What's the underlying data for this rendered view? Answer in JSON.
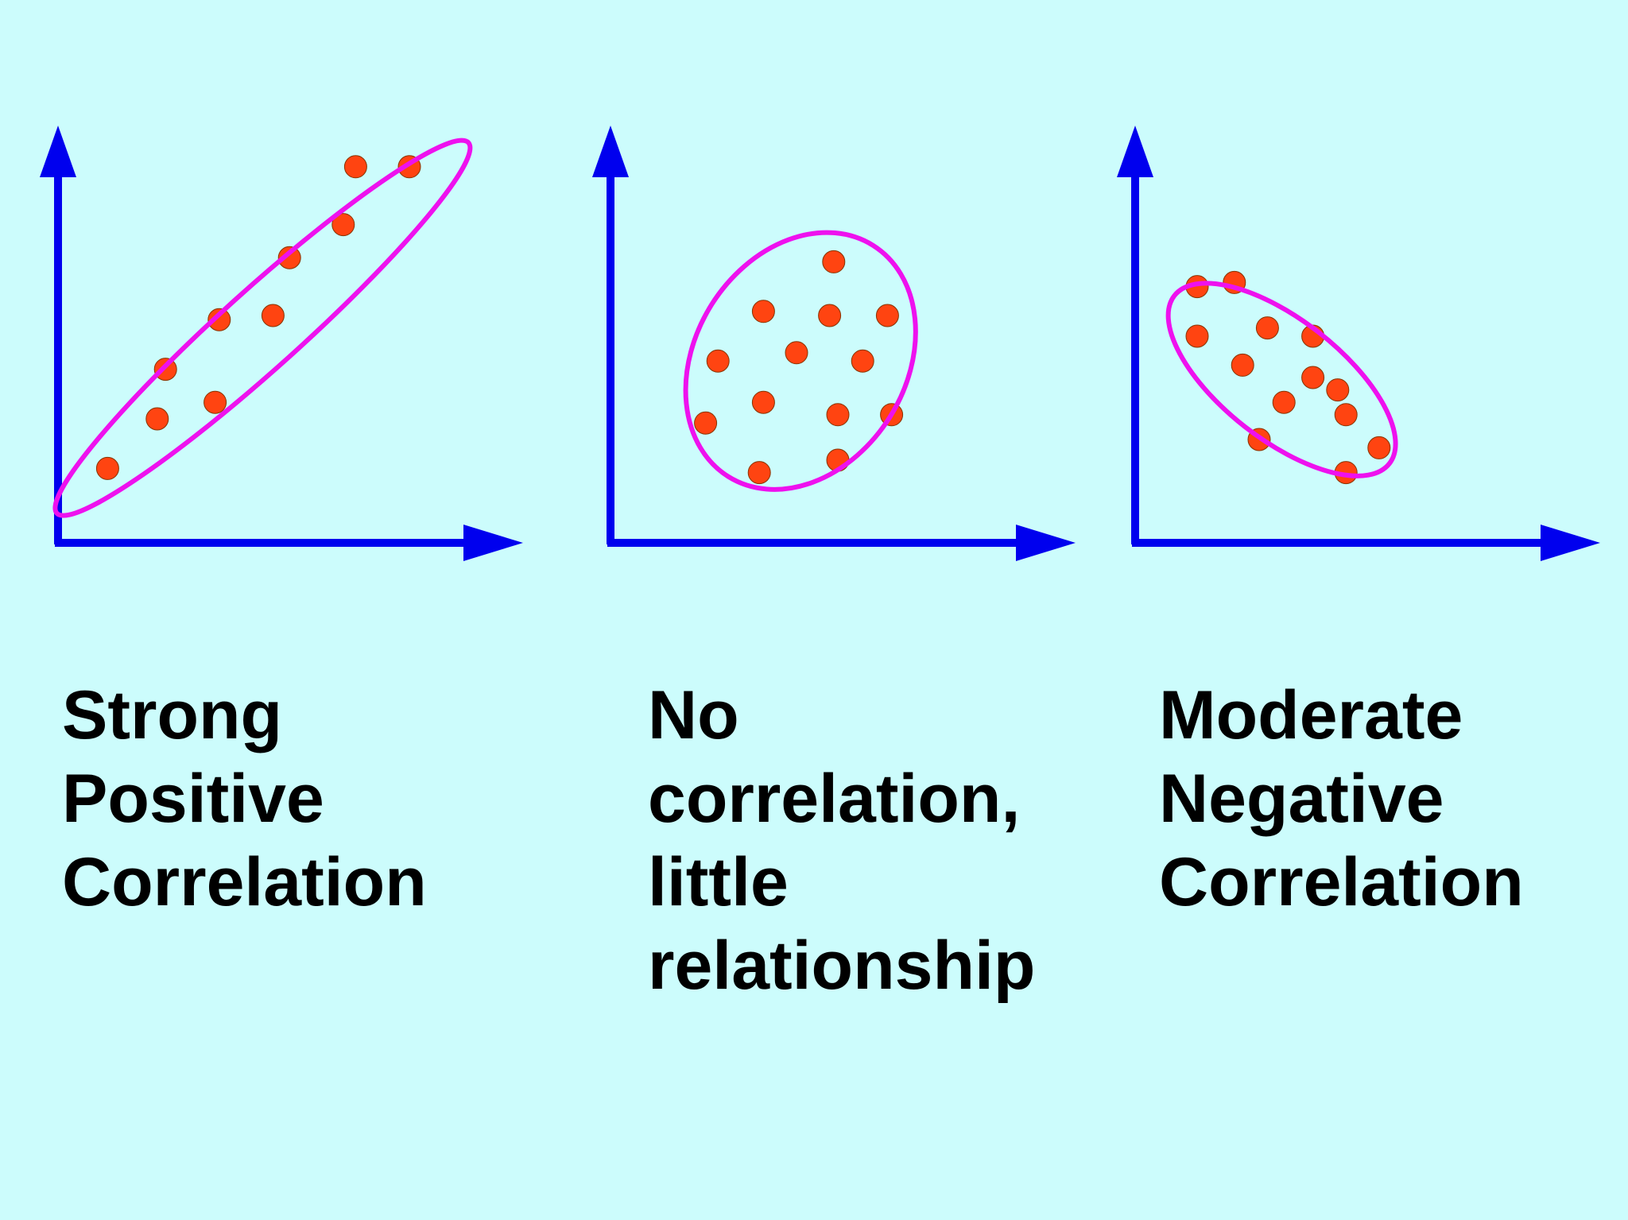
{
  "colors": {
    "background": "#ccfcfc",
    "axis": "#0000ee",
    "ellipse": "#ee11ee",
    "point": "#ff4411",
    "point_outline": "#883300",
    "caption": "#000000"
  },
  "chart_data": [
    {
      "type": "scatter",
      "title_lines": [
        "Strong",
        "Positive",
        "Correlation"
      ],
      "xlabel": "",
      "ylabel": "",
      "xlim": [
        0,
        10
      ],
      "ylim": [
        0,
        10
      ],
      "grid": false,
      "points": [
        {
          "x": 1.2,
          "y": 1.8
        },
        {
          "x": 2.4,
          "y": 3.0
        },
        {
          "x": 2.6,
          "y": 4.2
        },
        {
          "x": 3.8,
          "y": 3.4
        },
        {
          "x": 3.9,
          "y": 5.4
        },
        {
          "x": 5.2,
          "y": 5.5
        },
        {
          "x": 5.6,
          "y": 6.9
        },
        {
          "x": 6.9,
          "y": 7.7
        },
        {
          "x": 7.2,
          "y": 9.1
        },
        {
          "x": 8.5,
          "y": 9.1
        }
      ],
      "highlight_ellipse": true
    },
    {
      "type": "scatter",
      "title_lines": [
        "No",
        "correlation,",
        "little",
        "relationship"
      ],
      "xlabel": "",
      "ylabel": "",
      "xlim": [
        0,
        10
      ],
      "ylim": [
        0,
        10
      ],
      "grid": false,
      "points": [
        {
          "x": 2.3,
          "y": 2.9
        },
        {
          "x": 2.6,
          "y": 4.4
        },
        {
          "x": 3.6,
          "y": 1.7
        },
        {
          "x": 3.7,
          "y": 3.4
        },
        {
          "x": 3.7,
          "y": 5.6
        },
        {
          "x": 4.5,
          "y": 4.6
        },
        {
          "x": 5.3,
          "y": 5.5
        },
        {
          "x": 5.5,
          "y": 2.0
        },
        {
          "x": 5.5,
          "y": 3.1
        },
        {
          "x": 5.4,
          "y": 6.8
        },
        {
          "x": 6.1,
          "y": 4.4
        },
        {
          "x": 6.7,
          "y": 5.5
        },
        {
          "x": 6.8,
          "y": 3.1
        }
      ],
      "highlight_ellipse": true
    },
    {
      "type": "scatter",
      "title_lines": [
        "Moderate",
        "Negative",
        "Correlation"
      ],
      "xlabel": "",
      "ylabel": "",
      "xlim": [
        0,
        10
      ],
      "ylim": [
        0,
        10
      ],
      "grid": false,
      "points": [
        {
          "x": 1.5,
          "y": 6.2
        },
        {
          "x": 1.5,
          "y": 5.0
        },
        {
          "x": 2.4,
          "y": 6.3
        },
        {
          "x": 2.6,
          "y": 4.3
        },
        {
          "x": 3.2,
          "y": 5.2
        },
        {
          "x": 3.0,
          "y": 2.5
        },
        {
          "x": 3.6,
          "y": 3.4
        },
        {
          "x": 4.3,
          "y": 4.0
        },
        {
          "x": 4.3,
          "y": 5.0
        },
        {
          "x": 4.9,
          "y": 3.7
        },
        {
          "x": 5.1,
          "y": 3.1
        },
        {
          "x": 5.1,
          "y": 1.7
        },
        {
          "x": 5.9,
          "y": 2.3
        }
      ],
      "highlight_ellipse": true
    }
  ]
}
